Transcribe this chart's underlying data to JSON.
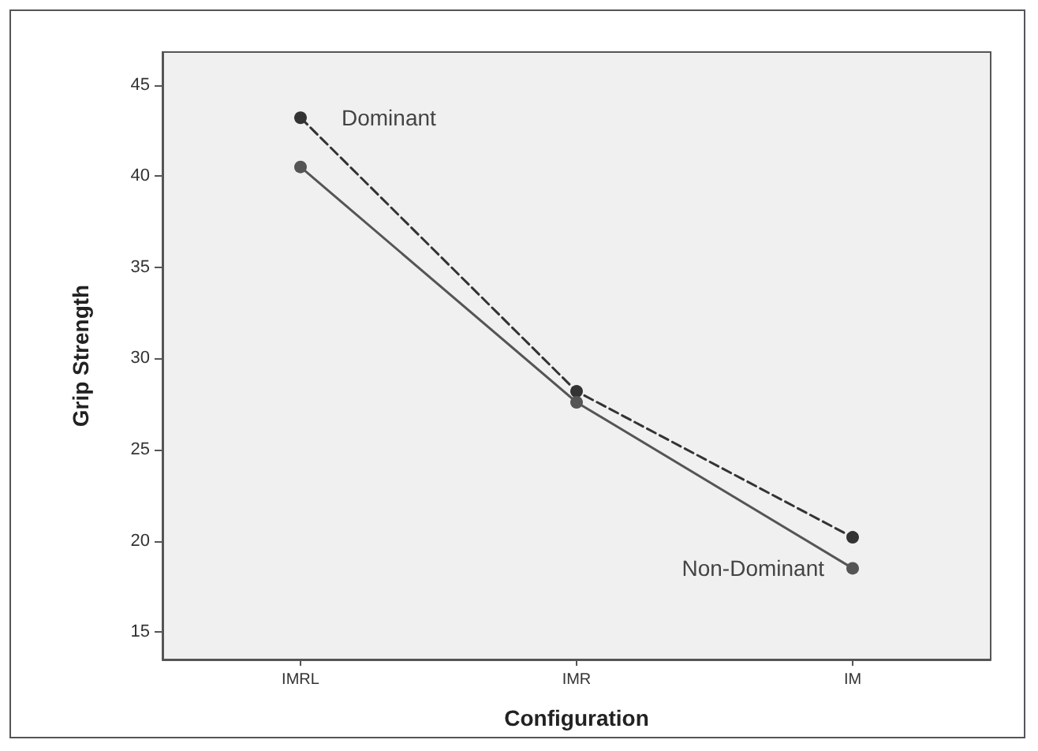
{
  "chart_data": {
    "type": "line",
    "xlabel": "Configuration",
    "ylabel": "Grip Strength",
    "categories": [
      "IMRL",
      "IMR",
      "IM"
    ],
    "series": [
      {
        "name": "Dominant",
        "color": "#333333",
        "line_style": "dashed",
        "values": [
          43.2,
          28.2,
          20.2
        ]
      },
      {
        "name": "Non-Dominant",
        "color": "#555555",
        "line_style": "solid",
        "values": [
          40.5,
          27.6,
          18.5
        ]
      }
    ],
    "ylim": [
      13.5,
      46.8
    ],
    "yticks": [
      15,
      20,
      25,
      30,
      35,
      40,
      45
    ],
    "marker": "circle",
    "grid": false,
    "legend": false
  }
}
